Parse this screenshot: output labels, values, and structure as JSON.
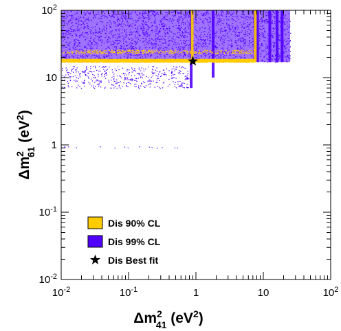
{
  "chart_data": {
    "type": "scatter",
    "title": "",
    "x_axis": {
      "label_main": "Δm",
      "label_sup": "2",
      "label_sub": "41",
      "label_unit": " (eV",
      "label_unit_sup": "2",
      "label_close": ")",
      "scale": "log",
      "range": [
        0.01,
        100
      ],
      "ticks": [
        {
          "value": 0.01,
          "base": "10",
          "exp": "-2"
        },
        {
          "value": 0.1,
          "base": "10",
          "exp": "-1"
        },
        {
          "value": 1,
          "base": "1",
          "exp": ""
        },
        {
          "value": 10,
          "base": "10",
          "exp": ""
        },
        {
          "value": 100,
          "base": "10",
          "exp": "2"
        }
      ]
    },
    "y_axis": {
      "label_main": "Δm",
      "label_sup": "2",
      "label_sub": "61",
      "label_unit": " (eV",
      "label_unit_sup": "2",
      "label_close": ")",
      "scale": "log",
      "range": [
        0.01,
        100
      ],
      "ticks": [
        {
          "value": 0.01,
          "base": "10",
          "exp": "-2"
        },
        {
          "value": 0.1,
          "base": "10",
          "exp": "-1"
        },
        {
          "value": 1,
          "base": "1",
          "exp": ""
        },
        {
          "value": 10,
          "base": "10",
          "exp": ""
        },
        {
          "value": 100,
          "base": "10",
          "exp": "2"
        }
      ]
    },
    "grid": false,
    "legend": {
      "placement": "bottom-left",
      "entries": [
        {
          "label": "Dis 90% CL",
          "color": "#ffcc00",
          "marker": "box"
        },
        {
          "label": "Dis 99% CL",
          "color": "#5000ff",
          "marker": "box"
        },
        {
          "label": "Dis Best fit",
          "color": "#000000",
          "marker": "star"
        }
      ]
    },
    "series": [
      {
        "name": "Dis 99% CL",
        "color": "#5000ff",
        "kind": "region",
        "regions": [
          {
            "x": [
              0.01,
              25
            ],
            "y": [
              17,
              100
            ],
            "density": "dense"
          },
          {
            "x": [
              0.01,
              0.8
            ],
            "y": [
              7,
              15
            ],
            "density": "sparse"
          },
          {
            "x": [
              0.01,
              0.8
            ],
            "y": [
              0.9,
              0.95
            ],
            "density": "trace"
          }
        ],
        "vertical_bands": [
          {
            "x": 0.85,
            "y": [
              7,
              100
            ]
          },
          {
            "x": 1.8,
            "y": [
              10,
              100
            ]
          },
          {
            "x": 7.5,
            "y": [
              17,
              100
            ]
          },
          {
            "x": 8.2,
            "y": [
              17,
              100
            ]
          },
          {
            "x": 12.5,
            "y": [
              17,
              100
            ]
          },
          {
            "x": 16,
            "y": [
              17,
              100
            ]
          },
          {
            "x": 19,
            "y": [
              17,
              100
            ]
          }
        ]
      },
      {
        "name": "Dis 90% CL",
        "color": "#ffcc00",
        "kind": "region",
        "regions": [
          {
            "x": [
              0.01,
              7.5
            ],
            "y": [
              17,
              19
            ],
            "density": "dense"
          },
          {
            "x": [
              0.01,
              7.5
            ],
            "y": [
              23,
              26
            ],
            "density": "sparse"
          }
        ],
        "vertical_bands": [
          {
            "x": 0.88,
            "y": [
              17,
              100
            ]
          },
          {
            "x": 7.6,
            "y": [
              17,
              100
            ]
          }
        ]
      },
      {
        "name": "Dis Best fit",
        "color": "#000000",
        "kind": "point",
        "points": [
          {
            "x": 0.9,
            "y": 17.5
          }
        ]
      }
    ]
  }
}
